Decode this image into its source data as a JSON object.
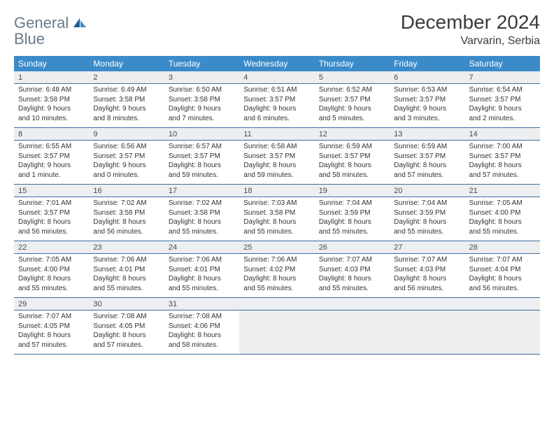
{
  "logo": {
    "word1": "General",
    "word2": "Blue"
  },
  "title": "December 2024",
  "subtitle": "Varvarin, Serbia",
  "colors": {
    "header_bg": "#3b8bc9",
    "header_text": "#ffffff",
    "daynum_bg": "#eceef0",
    "cell_border": "#3b6fa3",
    "logo_gray": "#6b7a89",
    "logo_blue": "#2d7cc4",
    "page_bg": "#ffffff",
    "text": "#333333"
  },
  "weekdays": [
    "Sunday",
    "Monday",
    "Tuesday",
    "Wednesday",
    "Thursday",
    "Friday",
    "Saturday"
  ],
  "weeks": [
    [
      {
        "n": "1",
        "sr": "Sunrise: 6:48 AM",
        "ss": "Sunset: 3:58 PM",
        "d1": "Daylight: 9 hours",
        "d2": "and 10 minutes."
      },
      {
        "n": "2",
        "sr": "Sunrise: 6:49 AM",
        "ss": "Sunset: 3:58 PM",
        "d1": "Daylight: 9 hours",
        "d2": "and 8 minutes."
      },
      {
        "n": "3",
        "sr": "Sunrise: 6:50 AM",
        "ss": "Sunset: 3:58 PM",
        "d1": "Daylight: 9 hours",
        "d2": "and 7 minutes."
      },
      {
        "n": "4",
        "sr": "Sunrise: 6:51 AM",
        "ss": "Sunset: 3:57 PM",
        "d1": "Daylight: 9 hours",
        "d2": "and 6 minutes."
      },
      {
        "n": "5",
        "sr": "Sunrise: 6:52 AM",
        "ss": "Sunset: 3:57 PM",
        "d1": "Daylight: 9 hours",
        "d2": "and 5 minutes."
      },
      {
        "n": "6",
        "sr": "Sunrise: 6:53 AM",
        "ss": "Sunset: 3:57 PM",
        "d1": "Daylight: 9 hours",
        "d2": "and 3 minutes."
      },
      {
        "n": "7",
        "sr": "Sunrise: 6:54 AM",
        "ss": "Sunset: 3:57 PM",
        "d1": "Daylight: 9 hours",
        "d2": "and 2 minutes."
      }
    ],
    [
      {
        "n": "8",
        "sr": "Sunrise: 6:55 AM",
        "ss": "Sunset: 3:57 PM",
        "d1": "Daylight: 9 hours",
        "d2": "and 1 minute."
      },
      {
        "n": "9",
        "sr": "Sunrise: 6:56 AM",
        "ss": "Sunset: 3:57 PM",
        "d1": "Daylight: 9 hours",
        "d2": "and 0 minutes."
      },
      {
        "n": "10",
        "sr": "Sunrise: 6:57 AM",
        "ss": "Sunset: 3:57 PM",
        "d1": "Daylight: 8 hours",
        "d2": "and 59 minutes."
      },
      {
        "n": "11",
        "sr": "Sunrise: 6:58 AM",
        "ss": "Sunset: 3:57 PM",
        "d1": "Daylight: 8 hours",
        "d2": "and 59 minutes."
      },
      {
        "n": "12",
        "sr": "Sunrise: 6:59 AM",
        "ss": "Sunset: 3:57 PM",
        "d1": "Daylight: 8 hours",
        "d2": "and 58 minutes."
      },
      {
        "n": "13",
        "sr": "Sunrise: 6:59 AM",
        "ss": "Sunset: 3:57 PM",
        "d1": "Daylight: 8 hours",
        "d2": "and 57 minutes."
      },
      {
        "n": "14",
        "sr": "Sunrise: 7:00 AM",
        "ss": "Sunset: 3:57 PM",
        "d1": "Daylight: 8 hours",
        "d2": "and 57 minutes."
      }
    ],
    [
      {
        "n": "15",
        "sr": "Sunrise: 7:01 AM",
        "ss": "Sunset: 3:57 PM",
        "d1": "Daylight: 8 hours",
        "d2": "and 56 minutes."
      },
      {
        "n": "16",
        "sr": "Sunrise: 7:02 AM",
        "ss": "Sunset: 3:58 PM",
        "d1": "Daylight: 8 hours",
        "d2": "and 56 minutes."
      },
      {
        "n": "17",
        "sr": "Sunrise: 7:02 AM",
        "ss": "Sunset: 3:58 PM",
        "d1": "Daylight: 8 hours",
        "d2": "and 55 minutes."
      },
      {
        "n": "18",
        "sr": "Sunrise: 7:03 AM",
        "ss": "Sunset: 3:58 PM",
        "d1": "Daylight: 8 hours",
        "d2": "and 55 minutes."
      },
      {
        "n": "19",
        "sr": "Sunrise: 7:04 AM",
        "ss": "Sunset: 3:59 PM",
        "d1": "Daylight: 8 hours",
        "d2": "and 55 minutes."
      },
      {
        "n": "20",
        "sr": "Sunrise: 7:04 AM",
        "ss": "Sunset: 3:59 PM",
        "d1": "Daylight: 8 hours",
        "d2": "and 55 minutes."
      },
      {
        "n": "21",
        "sr": "Sunrise: 7:05 AM",
        "ss": "Sunset: 4:00 PM",
        "d1": "Daylight: 8 hours",
        "d2": "and 55 minutes."
      }
    ],
    [
      {
        "n": "22",
        "sr": "Sunrise: 7:05 AM",
        "ss": "Sunset: 4:00 PM",
        "d1": "Daylight: 8 hours",
        "d2": "and 55 minutes."
      },
      {
        "n": "23",
        "sr": "Sunrise: 7:06 AM",
        "ss": "Sunset: 4:01 PM",
        "d1": "Daylight: 8 hours",
        "d2": "and 55 minutes."
      },
      {
        "n": "24",
        "sr": "Sunrise: 7:06 AM",
        "ss": "Sunset: 4:01 PM",
        "d1": "Daylight: 8 hours",
        "d2": "and 55 minutes."
      },
      {
        "n": "25",
        "sr": "Sunrise: 7:06 AM",
        "ss": "Sunset: 4:02 PM",
        "d1": "Daylight: 8 hours",
        "d2": "and 55 minutes."
      },
      {
        "n": "26",
        "sr": "Sunrise: 7:07 AM",
        "ss": "Sunset: 4:03 PM",
        "d1": "Daylight: 8 hours",
        "d2": "and 55 minutes."
      },
      {
        "n": "27",
        "sr": "Sunrise: 7:07 AM",
        "ss": "Sunset: 4:03 PM",
        "d1": "Daylight: 8 hours",
        "d2": "and 56 minutes."
      },
      {
        "n": "28",
        "sr": "Sunrise: 7:07 AM",
        "ss": "Sunset: 4:04 PM",
        "d1": "Daylight: 8 hours",
        "d2": "and 56 minutes."
      }
    ],
    [
      {
        "n": "29",
        "sr": "Sunrise: 7:07 AM",
        "ss": "Sunset: 4:05 PM",
        "d1": "Daylight: 8 hours",
        "d2": "and 57 minutes."
      },
      {
        "n": "30",
        "sr": "Sunrise: 7:08 AM",
        "ss": "Sunset: 4:05 PM",
        "d1": "Daylight: 8 hours",
        "d2": "and 57 minutes."
      },
      {
        "n": "31",
        "sr": "Sunrise: 7:08 AM",
        "ss": "Sunset: 4:06 PM",
        "d1": "Daylight: 8 hours",
        "d2": "and 58 minutes."
      },
      null,
      null,
      null,
      null
    ]
  ]
}
